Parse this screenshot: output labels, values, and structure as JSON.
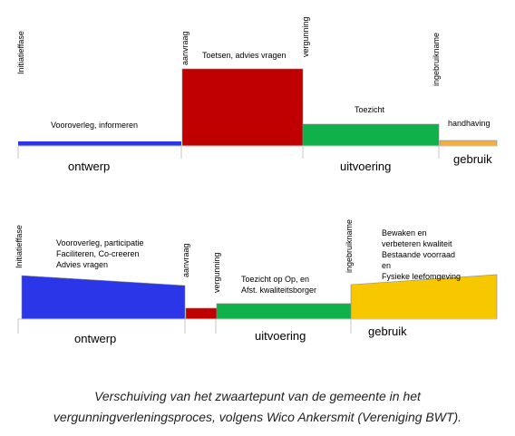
{
  "top": {
    "labels": {
      "initiatief": "Initiatieffase",
      "aanvraag": "aanvraag",
      "vergunning": "vergunning",
      "ingebruikname": "ingebruikname",
      "vooroverleg": "Vooroverleg, informeren",
      "toetsen": "Toetsen, advies vragen",
      "toezicht": "Toezicht",
      "handhaving": "handhaving"
    },
    "phases": {
      "ontwerp": "ontwerp",
      "uitvoering": "uitvoering",
      "gebruik": "gebruik"
    }
  },
  "bottom": {
    "labels": {
      "initiatief": "Initiatieffase",
      "aanvraag": "aanvraag",
      "vergunning": "vergunning",
      "ingebruikname": "ingebruikname",
      "vooroverleg1": "Vooroverleg, participatie",
      "vooroverleg2": "Faciliteren, Co-creeren",
      "vooroverleg3": "Advies vragen",
      "toezicht1": "Toezicht op Op, en",
      "toezicht2": "Afst. kwaliteitsborger",
      "bewaken1": "Bewaken en",
      "bewaken2": "verbeteren kwaliteit",
      "bewaken3": "Bestaande voorraad",
      "bewaken4": "en",
      "bewaken5": "Fysieke leefomgeving"
    },
    "phases": {
      "ontwerp": "ontwerp",
      "uitvoering": "uitvoering",
      "gebruik": "gebruik"
    }
  },
  "caption": {
    "line1": "Verschuiving van het zwaartepunt van de gemeente in het",
    "line2": "vergunningverleningsproces, volgens Wico Ankersmit (Vereniging BWT)."
  },
  "colors": {
    "blue": "#2a36e8",
    "red": "#c00000",
    "green": "#10b04a",
    "yellow": "#f7c800",
    "orange": "#f4ae3d",
    "axis": "#c7c7c7"
  }
}
